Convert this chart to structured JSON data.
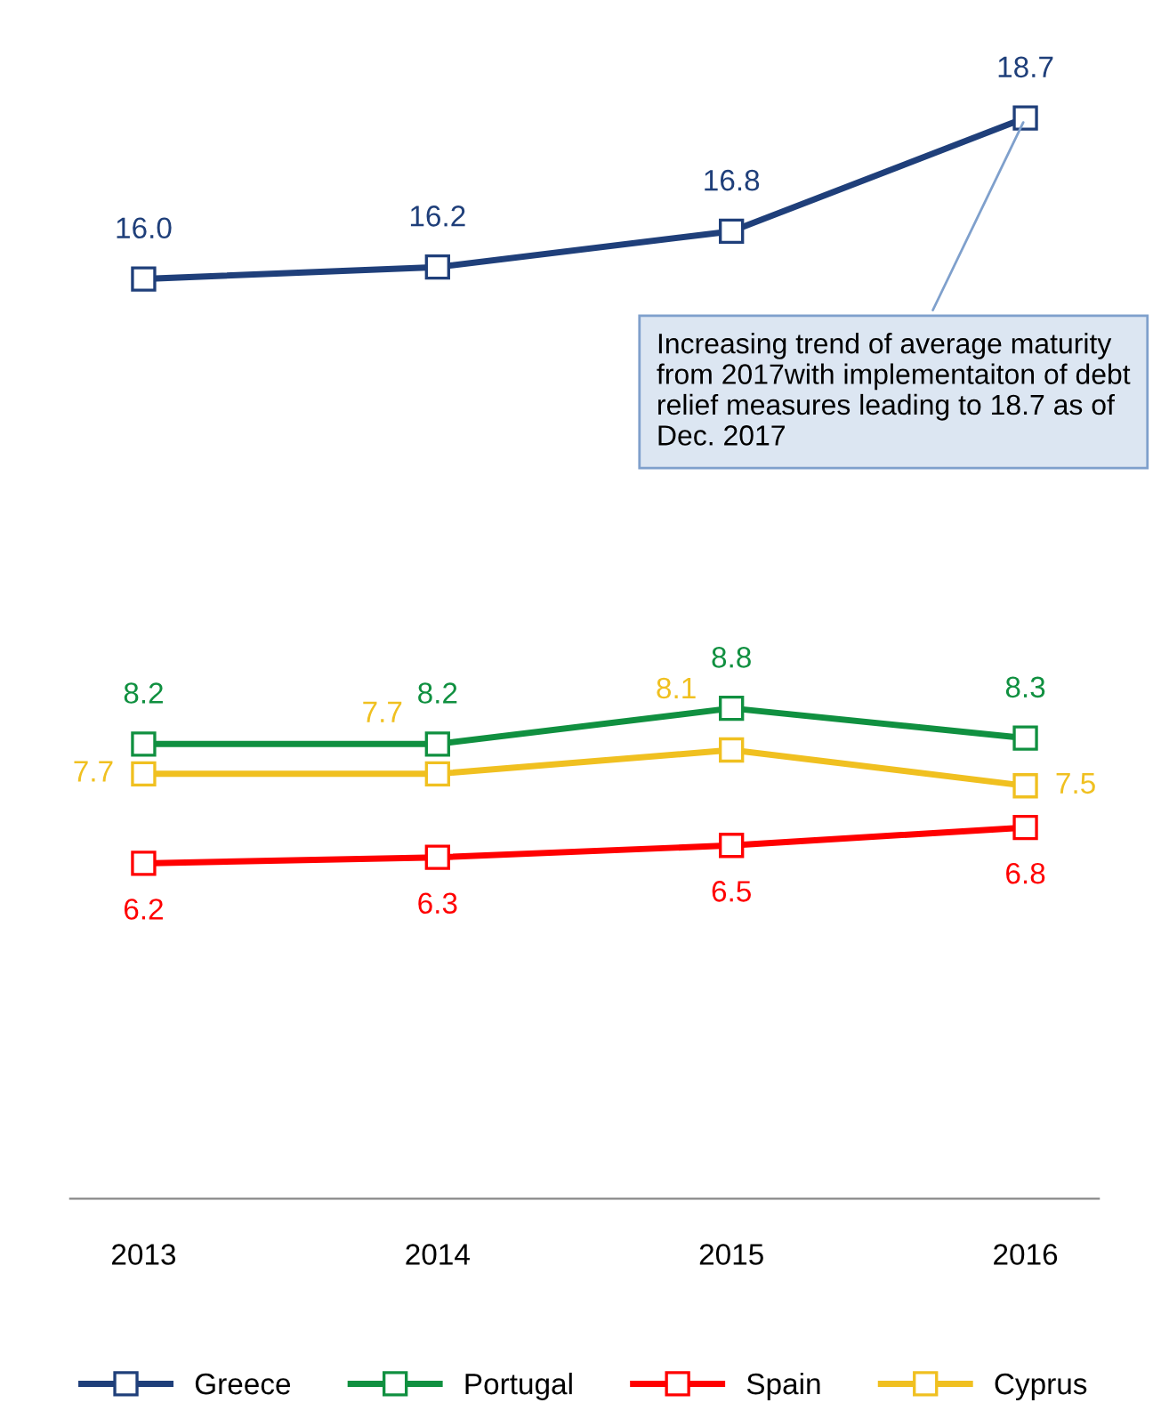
{
  "chart_data": {
    "type": "line",
    "categories": [
      "2013",
      "2014",
      "2015",
      "2016"
    ],
    "series": [
      {
        "name": "Greece",
        "color": "#1f3f7a",
        "values": [
          16.0,
          16.2,
          16.8,
          18.7
        ],
        "value_labels": [
          "16.0",
          "16.2",
          "16.8",
          "18.7"
        ]
      },
      {
        "name": "Portugal",
        "color": "#109040",
        "values": [
          8.2,
          8.2,
          8.8,
          8.3
        ]
      },
      {
        "name": "Spain",
        "color": "#ff0000",
        "values": [
          6.2,
          6.3,
          6.5,
          6.8
        ]
      },
      {
        "name": "Cyprus",
        "color": "#f0c020",
        "values": [
          7.7,
          7.7,
          8.1,
          7.5
        ]
      }
    ],
    "data_labels": true,
    "marker": "square",
    "line_style": "solid",
    "grid": false,
    "legend": "bottom",
    "tick_labels": "x",
    "annotations": [
      {
        "text": "Increasing trend of average maturity from 2017with implementaiton of debt relief measures leading to 18.7 as of Dec. 2017",
        "x": "2016",
        "y": 18.7
      }
    ]
  }
}
